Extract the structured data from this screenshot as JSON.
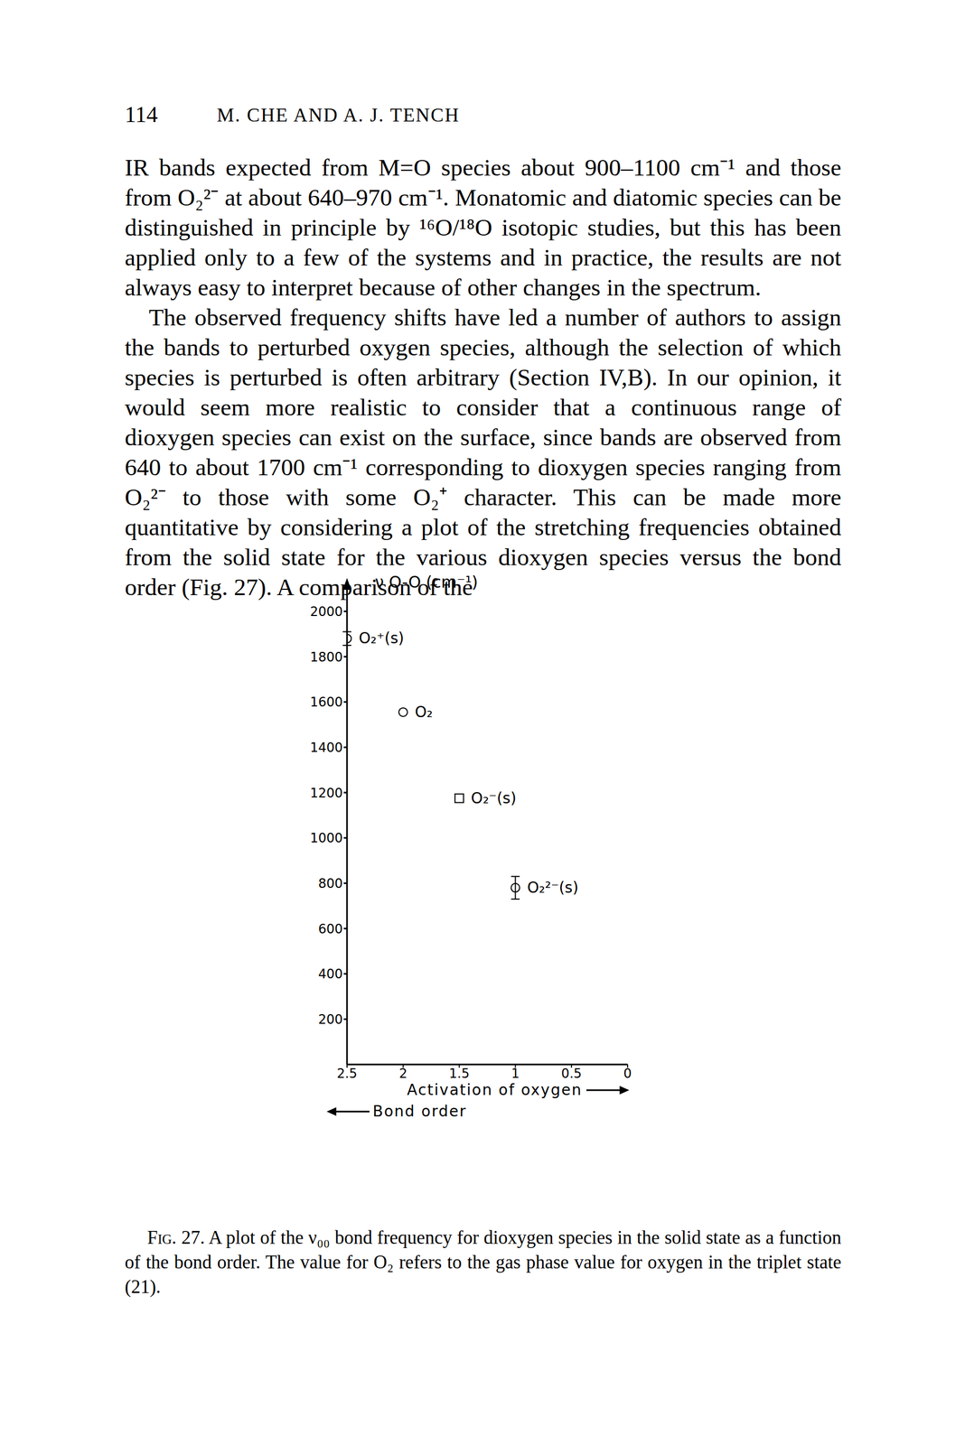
{
  "page": {
    "number": "114",
    "running_head": "M. CHE AND A. J. TENCH"
  },
  "paragraphs": [
    "IR bands expected from M=O species about 900–1100 cm⁻¹ and those from O₂²⁻ at about 640–970 cm⁻¹. Monatomic and diatomic species can be distinguished in principle by ¹⁶O/¹⁸O isotopic studies, but this has been applied only to a few of the systems and in practice, the results are not always easy to interpret because of other changes in the spectrum.",
    "The observed frequency shifts have led a number of authors to assign the bands to perturbed oxygen species, although the selection of which species is perturbed is often arbitrary (Section IV,B). In our opinion, it would seem more realistic to consider that a continuous range of dioxygen species can exist on the surface, since bands are observed from 640 to about 1700 cm⁻¹ corresponding to dioxygen species ranging from O₂²⁻ to those with some O₂⁺ character. This can be made more quantitative by considering a plot of the stretching frequencies obtained from the solid state for the various dioxygen species versus the bond order (Fig. 27). A comparison of the"
  ],
  "chart_data": {
    "type": "scatter",
    "y_label": "ν O-O (cm⁻¹)",
    "x_label": "Bond order",
    "annotation": "Activation of oxygen",
    "color": "#000000",
    "xlim": [
      2.5,
      0
    ],
    "ylim": [
      0,
      2100
    ],
    "xticks": [
      2.5,
      2,
      1.5,
      1,
      0.5,
      0
    ],
    "yticks": [
      200,
      400,
      600,
      800,
      1000,
      1200,
      1400,
      1600,
      1800,
      2000
    ],
    "series": [
      {
        "name": "O₂⁺(s)",
        "marker": "circle",
        "x": [
          2.5
        ],
        "values": [
          1880
        ],
        "error": [
          30
        ]
      },
      {
        "name": "O₂",
        "marker": "circle",
        "x": [
          2
        ],
        "values": [
          1555
        ],
        "error": [
          null
        ]
      },
      {
        "name": "O₂⁻(s)",
        "marker": "square",
        "x": [
          1.5
        ],
        "values": [
          1175
        ],
        "error": [
          null
        ]
      },
      {
        "name": "O₂²⁻(s)",
        "marker": "circle",
        "x": [
          1
        ],
        "values": [
          780
        ],
        "error": [
          50
        ]
      }
    ]
  },
  "caption": {
    "label": "Fig. 27.",
    "text": "A plot of the ν₀₀ bond frequency for dioxygen species in the solid state as a function of the bond order. The value for O₂ refers to the gas phase value for oxygen in the triplet state (21)."
  }
}
